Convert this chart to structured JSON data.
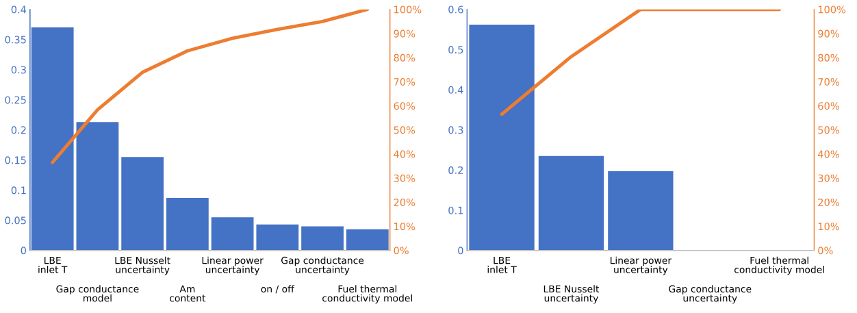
{
  "chart_data": [
    {
      "type": "bar",
      "categories": [
        "LBE\ninlet T",
        "Gap conductance\nmodel",
        "LBE Nusselt\nuncertainty",
        "Am\ncontent",
        "Linear power\nuncertainty",
        "on / off",
        "Gap conductance\nuncertainty",
        "Fuel thermal\nconductivity model"
      ],
      "series": [
        {
          "color": "#4472c4",
          "values": [
            0.37,
            0.213,
            0.155,
            0.087,
            0.055,
            0.043,
            0.04,
            0.035
          ]
        },
        {
          "type": "line",
          "axis": "y2",
          "color": "#ed7d31",
          "values": [
            36.5,
            58.3,
            73.9,
            82.8,
            88,
            91.7,
            95,
            100
          ]
        }
      ],
      "ylim": [
        0,
        0.4
      ],
      "yticks": [
        0,
        0.05,
        0.1,
        0.15,
        0.2,
        0.25,
        0.3,
        0.35,
        0.4
      ],
      "y2lim": [
        0,
        100
      ],
      "y2ticks": [
        {
          "value": 0,
          "label": "0%"
        },
        {
          "value": 10,
          "label": "10%"
        },
        {
          "value": 20,
          "label": "20%"
        },
        {
          "value": 30,
          "label": "30%"
        },
        {
          "value": 40,
          "label": "40%"
        },
        {
          "value": 50,
          "label": "50%"
        },
        {
          "value": 60,
          "label": "60%"
        },
        {
          "value": 70,
          "label": "70%"
        },
        {
          "value": 80,
          "label": "80%"
        },
        {
          "value": 90,
          "label": "90%"
        },
        {
          "value": 100,
          "label": "100%"
        }
      ],
      "grid": false,
      "legend": false,
      "marker": "none"
    },
    {
      "type": "bar",
      "categories": [
        "LBE\ninlet T",
        "LBE Nusselt\nuncertainty",
        "Linear power\nuncertainty",
        "Gap conductance\nuncertainty",
        "Fuel thermal\nconductivity model"
      ],
      "series": [
        {
          "color": "#4472c4",
          "values": [
            0.562,
            0.235,
            0.197,
            0,
            0
          ]
        },
        {
          "type": "line",
          "axis": "y2",
          "color": "#ed7d31",
          "values": [
            56.5,
            80.4,
            100,
            100,
            100
          ]
        }
      ],
      "ylim": [
        0,
        0.6
      ],
      "yticks": [
        0,
        0.1,
        0.2,
        0.3,
        0.4,
        0.5,
        0.6
      ],
      "y2lim": [
        0,
        100
      ],
      "y2ticks": [
        {
          "value": 0,
          "label": "0%"
        },
        {
          "value": 10,
          "label": "10%"
        },
        {
          "value": 20,
          "label": "20%"
        },
        {
          "value": 30,
          "label": "30%"
        },
        {
          "value": 40,
          "label": "40%"
        },
        {
          "value": 50,
          "label": "50%"
        },
        {
          "value": 60,
          "label": "60%"
        },
        {
          "value": 70,
          "label": "70%"
        },
        {
          "value": 80,
          "label": "80%"
        },
        {
          "value": 90,
          "label": "90%"
        },
        {
          "value": 100,
          "label": "100%"
        }
      ],
      "grid": false,
      "legend": false,
      "marker": "none"
    }
  ]
}
